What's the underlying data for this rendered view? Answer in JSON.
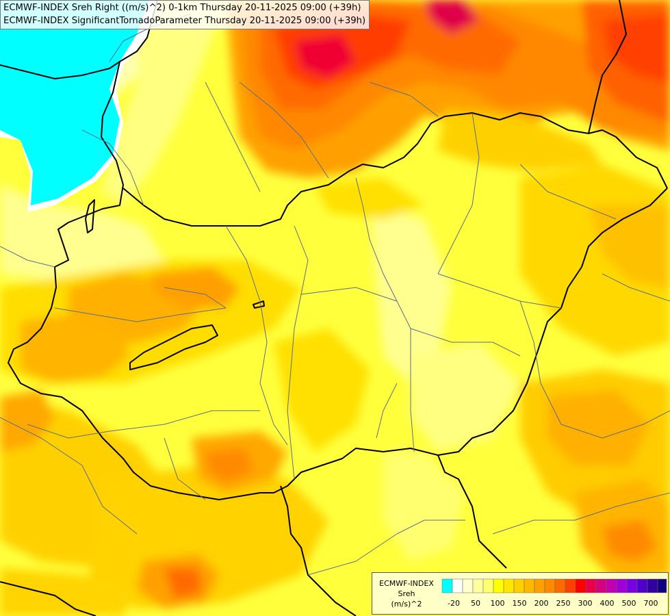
{
  "header": {
    "line1": "ECMWF-INDEX Sreh Right ((m/s)^2) 0-1km Thursday 20-11-2025 09:00 (+39h)",
    "line2": "ECMWF-INDEX SignificantTornadoParameter Thursday 20-11-2025 09:00 (+39h)"
  },
  "legend": {
    "source": "ECMWF-INDEX",
    "parameter": "Sreh",
    "unit": "(m/s)^2",
    "tick_labels": [
      "-20",
      "50",
      "100",
      "150",
      "200",
      "250",
      "300",
      "400",
      "500",
      "700"
    ],
    "colors": [
      "#00ffff",
      "#ffffff",
      "#ffffd0",
      "#ffffa0",
      "#ffff70",
      "#ffff00",
      "#ffe600",
      "#ffd000",
      "#ffb800",
      "#ffa000",
      "#ff8a00",
      "#ff6a00",
      "#ff4000",
      "#ff0000",
      "#e8004a",
      "#d40080",
      "#c000b0",
      "#a000d8",
      "#7800e0",
      "#5000c8",
      "#3000a0",
      "#100080"
    ]
  }
}
